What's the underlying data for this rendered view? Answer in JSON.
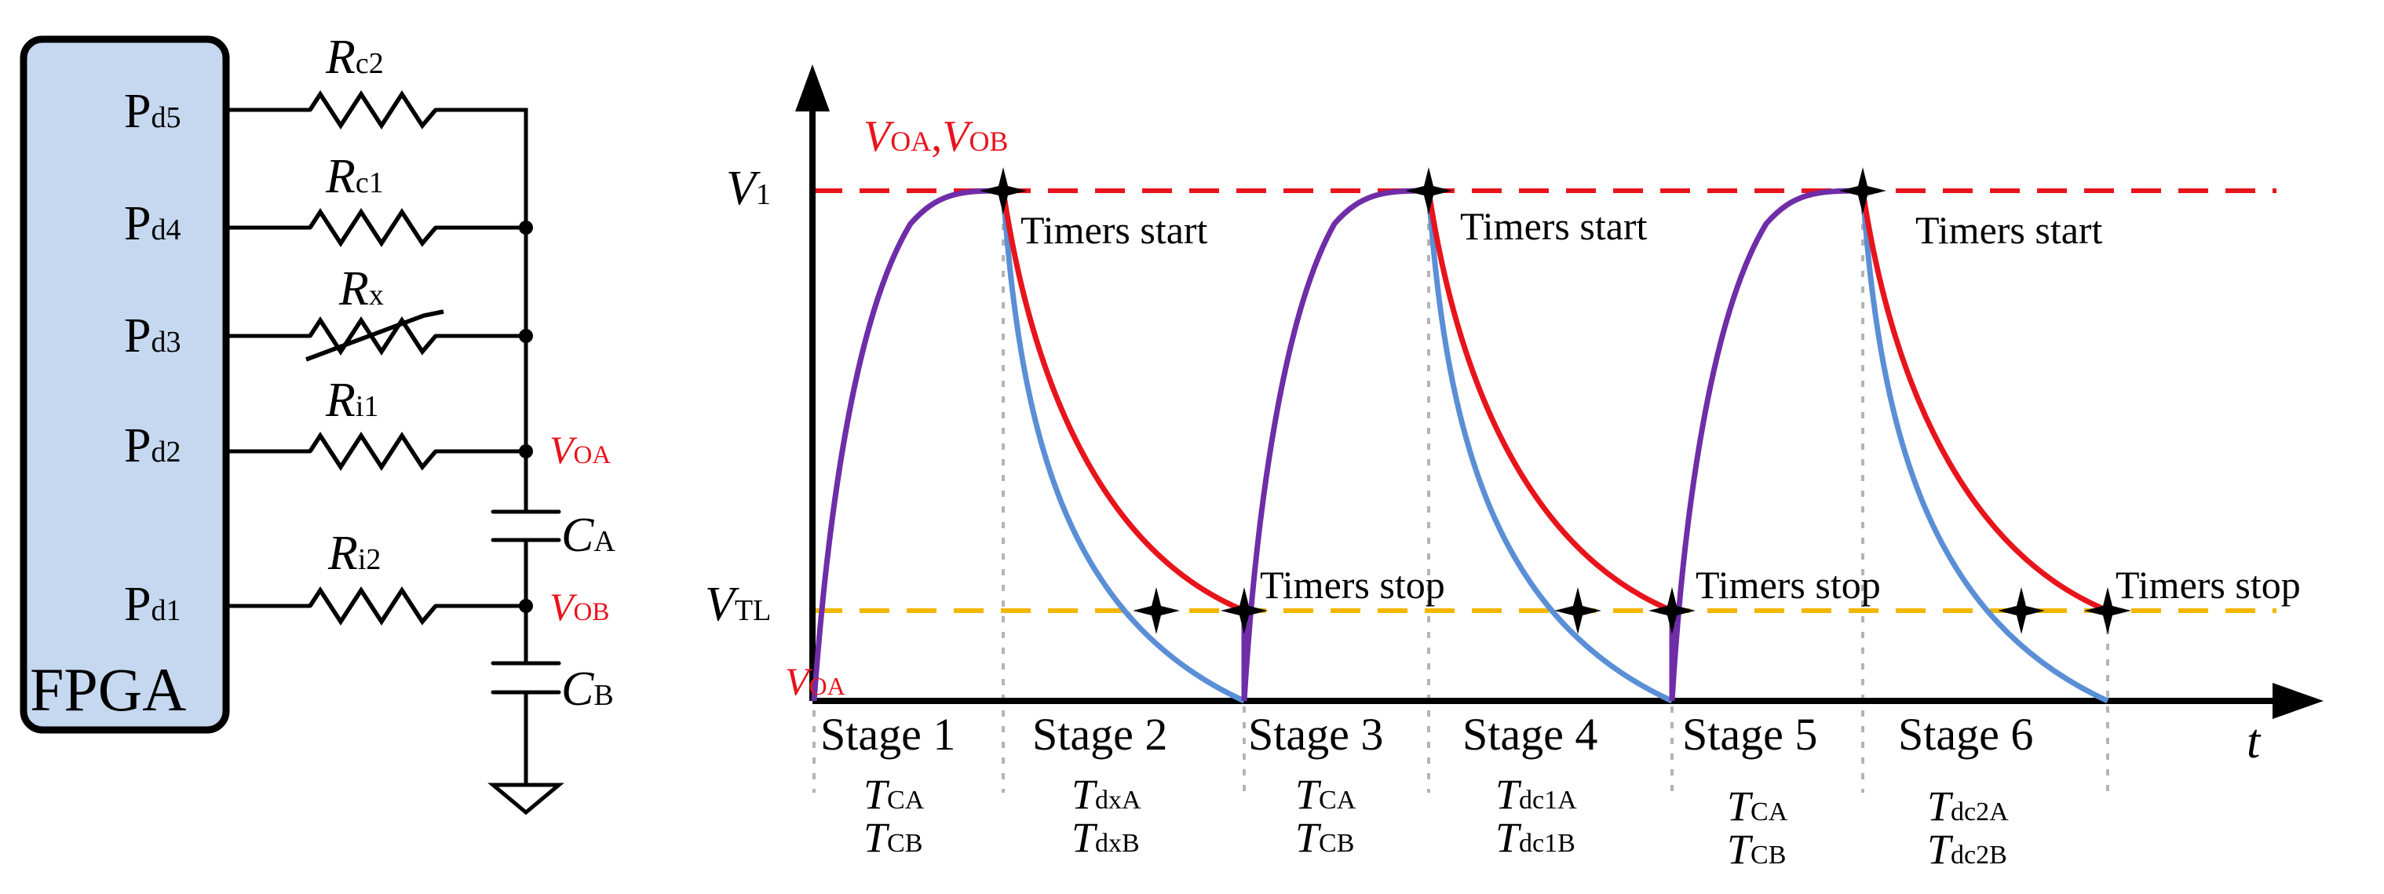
{
  "circuit": {
    "fpga_label": "FPGA",
    "pins": [
      {
        "letter": "P",
        "sub": "d5"
      },
      {
        "letter": "P",
        "sub": "d4"
      },
      {
        "letter": "P",
        "sub": "d3"
      },
      {
        "letter": "P",
        "sub": "d2"
      },
      {
        "letter": "P",
        "sub": "d1"
      }
    ],
    "resistors": [
      {
        "letter": "R",
        "sub": "c2"
      },
      {
        "letter": "R",
        "sub": "c1"
      },
      {
        "letter": "R",
        "sub": "x"
      },
      {
        "letter": "R",
        "sub": "i1"
      },
      {
        "letter": "R",
        "sub": "i2"
      }
    ],
    "capacitors": [
      {
        "letter": "C",
        "sub": "A"
      },
      {
        "letter": "C",
        "sub": "B"
      }
    ],
    "node_labels": [
      {
        "letter": "V",
        "sub": "OA"
      },
      {
        "letter": "V",
        "sub": "OB"
      }
    ]
  },
  "timing": {
    "axis_x_label": "t",
    "y_labels": [
      {
        "letter": "V",
        "sub": "1"
      },
      {
        "letter": "V",
        "sub": "TL"
      }
    ],
    "top_legend": {
      "a_letter": "V",
      "a_sub": "OA",
      "sep": ",",
      "b_letter": "V",
      "b_sub": "OB"
    },
    "origin_label": {
      "letter": "V",
      "sub": "OA"
    },
    "annotations": {
      "timers_start": [
        "Timers start",
        "Timers start",
        "Timers start"
      ],
      "timers_stop": [
        "Timers stop",
        "Timers stop",
        "Timers stop"
      ]
    },
    "stages": [
      {
        "label": "Stage 1",
        "t1": {
          "letter": "T",
          "sub": "CA"
        },
        "t2": {
          "letter": "T",
          "sub": "CB"
        }
      },
      {
        "label": "Stage 2",
        "t1": {
          "letter": "T",
          "sub": "dxA"
        },
        "t2": {
          "letter": "T",
          "sub": "dxB"
        }
      },
      {
        "label": "Stage 3",
        "t1": {
          "letter": "T",
          "sub": "CA"
        },
        "t2": {
          "letter": "T",
          "sub": "CB"
        }
      },
      {
        "label": "Stage 4",
        "t1": {
          "letter": "T",
          "sub": "dc1A"
        },
        "t2": {
          "letter": "T",
          "sub": "dc1B"
        }
      },
      {
        "label": "Stage 5",
        "t1": {
          "letter": "T",
          "sub": "CA"
        },
        "t2": {
          "letter": "T",
          "sub": "CB"
        }
      },
      {
        "label": "Stage 6",
        "t1": {
          "letter": "T",
          "sub": "dc2A"
        },
        "t2": {
          "letter": "T",
          "sub": "dc2B"
        }
      }
    ],
    "colors": {
      "charge": "#6f2da8",
      "voa_discharge": "#e8141c",
      "vob_discharge": "#5a8fd6",
      "v1_line": "#e8141c",
      "vtl_line": "#f2b600",
      "fpga_fill": "#c5d8ef",
      "highlight_text": "#e8141c"
    }
  }
}
